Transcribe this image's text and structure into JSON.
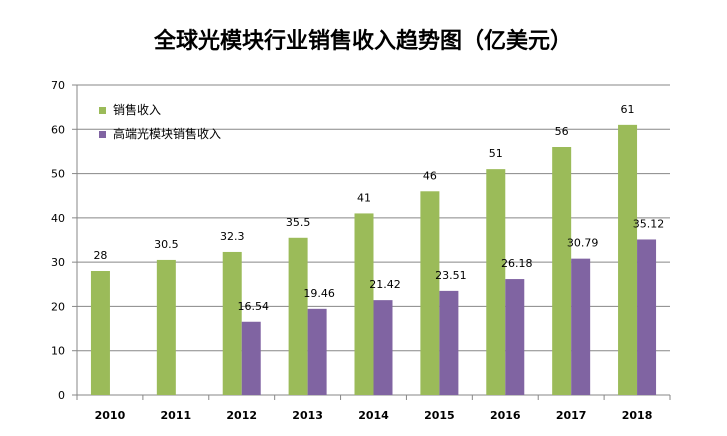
{
  "chart_data": {
    "type": "bar",
    "title": "全球光模块行业销售收入趋势图（亿美元）",
    "xlabel": "",
    "ylabel": "",
    "ylim": [
      0,
      70
    ],
    "yticks": [
      0,
      10,
      20,
      30,
      40,
      50,
      60,
      70
    ],
    "grid": true,
    "legend_position": "top-left",
    "categories": [
      "2010",
      "2011",
      "2012",
      "2013",
      "2014",
      "2015",
      "2016",
      "2017",
      "2018"
    ],
    "series": [
      {
        "name": "销售收入",
        "color": "#9BBB59",
        "values": [
          28,
          30.5,
          32.3,
          35.5,
          41,
          46,
          51,
          56,
          61
        ],
        "labels": [
          "28",
          "30.5",
          "32.3",
          "35.5",
          "41",
          "46",
          "51",
          "56",
          "61"
        ]
      },
      {
        "name": "高端光模块销售收入",
        "color": "#8064A2",
        "values": [
          null,
          null,
          16.54,
          19.46,
          21.42,
          23.51,
          26.18,
          30.79,
          35.12
        ],
        "labels": [
          "",
          "",
          "16.54",
          "19.46",
          "21.42",
          "23.51",
          "26.18",
          "30.79",
          "35.12"
        ]
      }
    ]
  }
}
